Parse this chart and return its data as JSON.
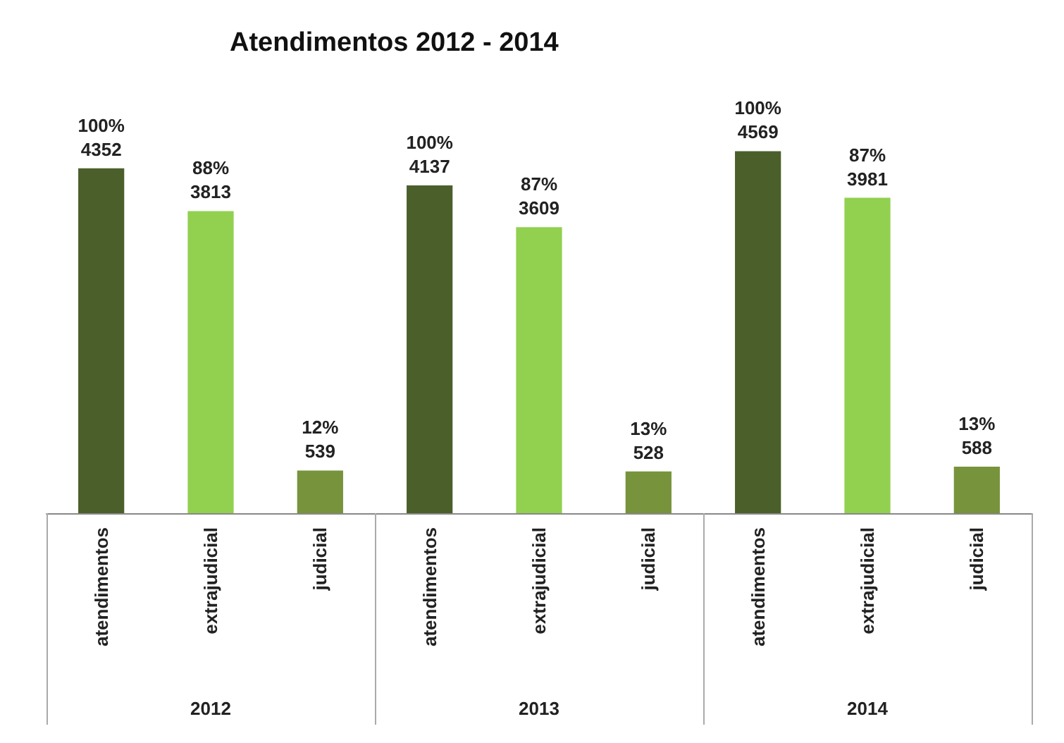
{
  "chart_data": {
    "type": "bar",
    "title": "Atendimentos 2012 - 2014",
    "categories": [
      "2012",
      "2013",
      "2014"
    ],
    "series": [
      {
        "name": "atendimentos",
        "color": "#4b5f2b",
        "values": [
          4352,
          4137,
          4569
        ],
        "value_labels": [
          "100%\n4352",
          "100%\n4137",
          "100%\n4569"
        ]
      },
      {
        "name": "extrajudicial",
        "color": "#92d050",
        "values": [
          3813,
          3609,
          3981
        ],
        "value_labels": [
          "88%\n3813",
          "87%\n3609",
          "87%\n3981"
        ]
      },
      {
        "name": "judicial",
        "color": "#77933c",
        "values": [
          539,
          528,
          588
        ],
        "value_labels": [
          "12%\n539",
          "13%\n528",
          "13%\n588"
        ]
      }
    ]
  }
}
